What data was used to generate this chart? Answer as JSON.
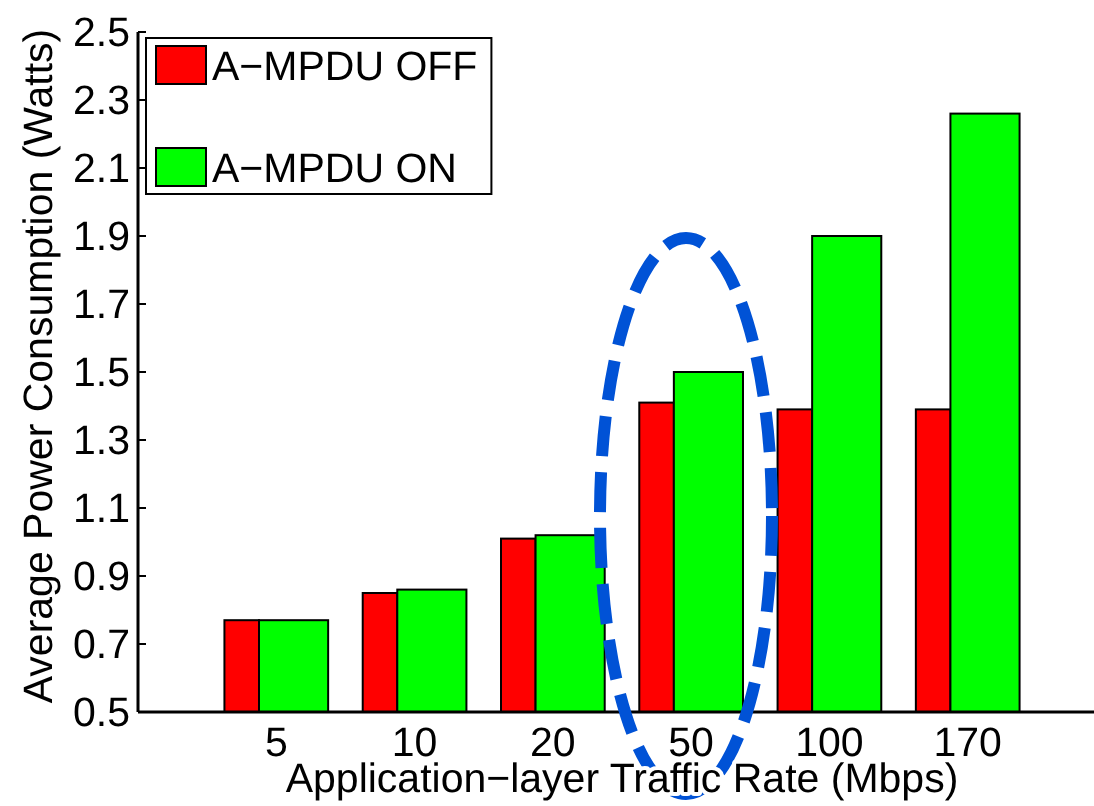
{
  "chart_data": {
    "type": "bar",
    "categories": [
      "5",
      "10",
      "20",
      "50",
      "100",
      "170"
    ],
    "series": [
      {
        "name": "A−MPDU OFF",
        "color": "#ff0000",
        "values": [
          0.77,
          0.85,
          1.01,
          1.41,
          1.39,
          1.39
        ]
      },
      {
        "name": "A−MPDU ON",
        "color": "#00ff00",
        "values": [
          0.77,
          0.86,
          1.02,
          1.5,
          1.9,
          2.26
        ]
      }
    ],
    "xlabel": "Application−layer Traffic Rate (Mbps)",
    "ylabel": "Average Power Consumption (Watts)",
    "ylim": [
      0.5,
      2.5
    ],
    "yticks": [
      0.5,
      0.7,
      0.9,
      1.1,
      1.3,
      1.5,
      1.7,
      1.9,
      2.1,
      2.3,
      2.5
    ],
    "legend": "top left"
  }
}
